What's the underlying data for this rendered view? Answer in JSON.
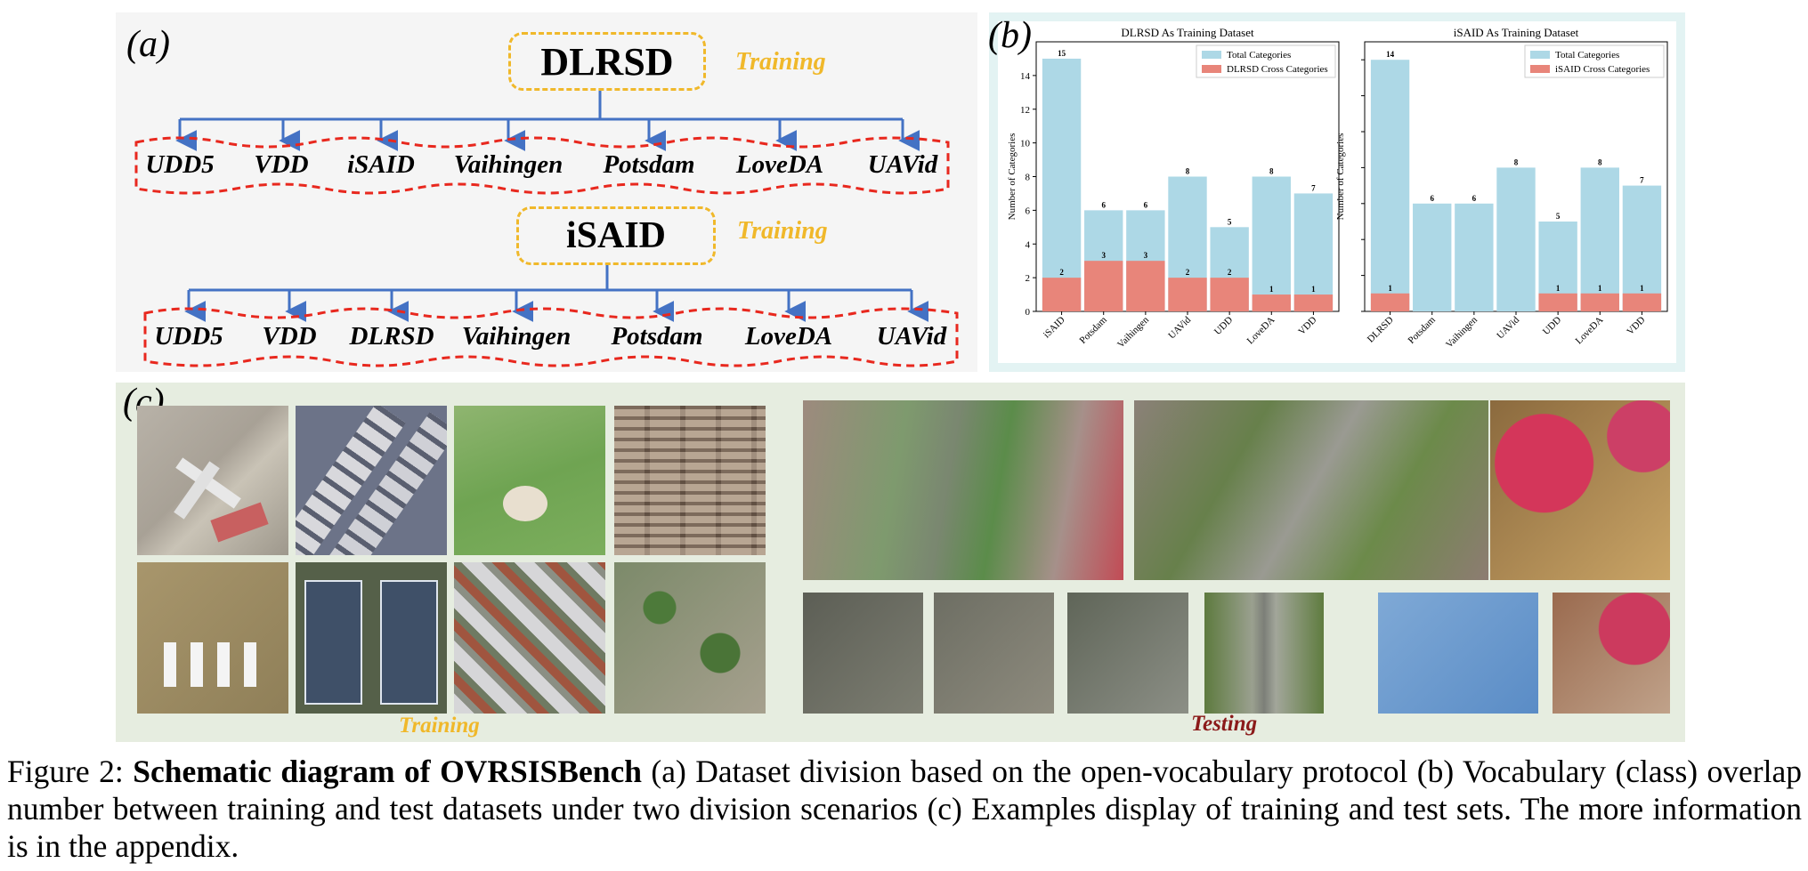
{
  "panel_a": {
    "label": "(a)",
    "training_label": "Training",
    "groups": [
      {
        "train_dataset": "DLRSD",
        "test_datasets": [
          "UDD5",
          "VDD",
          "iSAID",
          "Vaihingen",
          "Potsdam",
          "LoveDA",
          "UAVid"
        ]
      },
      {
        "train_dataset": "iSAID",
        "test_datasets": [
          "UDD5",
          "VDD",
          "DLRSD",
          "Vaihingen",
          "Potsdam",
          "LoveDA",
          "UAVid"
        ]
      }
    ]
  },
  "panel_b": {
    "label": "(b)"
  },
  "chart_data": [
    {
      "type": "bar",
      "title": "DLRSD As Training Dataset",
      "xlabel": "",
      "ylabel": "Number of Categories",
      "categories": [
        "iSAID",
        "Potsdam",
        "Vaihingen",
        "UAVid",
        "UDD",
        "LoveDA",
        "VDD"
      ],
      "ylim": [
        0,
        16
      ],
      "yticks": [
        0,
        2,
        4,
        6,
        8,
        10,
        12,
        14
      ],
      "legend_position": "top-right",
      "series": [
        {
          "name": "Total Categories",
          "color": "#add8e6",
          "values": [
            15,
            6,
            6,
            8,
            5,
            8,
            7
          ]
        },
        {
          "name": "DLRSD Cross Categories",
          "color": "#e8857a",
          "values": [
            2,
            3,
            3,
            2,
            2,
            1,
            1
          ]
        }
      ]
    },
    {
      "type": "bar",
      "title": "iSAID As Training Dataset",
      "xlabel": "",
      "ylabel": "Number of Categories",
      "categories": [
        "DLRSD",
        "Potsdam",
        "Vaihingen",
        "UAVid",
        "UDD",
        "LoveDA",
        "VDD"
      ],
      "ylim": [
        0,
        15
      ],
      "yticks": [],
      "legend_position": "top-right",
      "series": [
        {
          "name": "Total Categories",
          "color": "#add8e6",
          "values": [
            14,
            6,
            6,
            8,
            5,
            8,
            7
          ]
        },
        {
          "name": "iSAID Cross Categories",
          "color": "#e8857a",
          "values": [
            1,
            0,
            0,
            0,
            1,
            1,
            1
          ]
        }
      ]
    }
  ],
  "panel_c": {
    "label": "(c)",
    "training_label": "Training",
    "testing_label": "Testing",
    "training_color": "#f0b82a",
    "testing_color": "#8b1a1a"
  },
  "caption": {
    "figure_num": "Figure 2:",
    "bold_title": "Schematic diagram of OVRSISBench",
    "text": " (a) Dataset division based on the open-vocabulary protocol (b) Vocabulary (class) overlap number between training and test datasets under two division scenarios (c) Examples display of training and test sets. The more information is in the appendix."
  }
}
